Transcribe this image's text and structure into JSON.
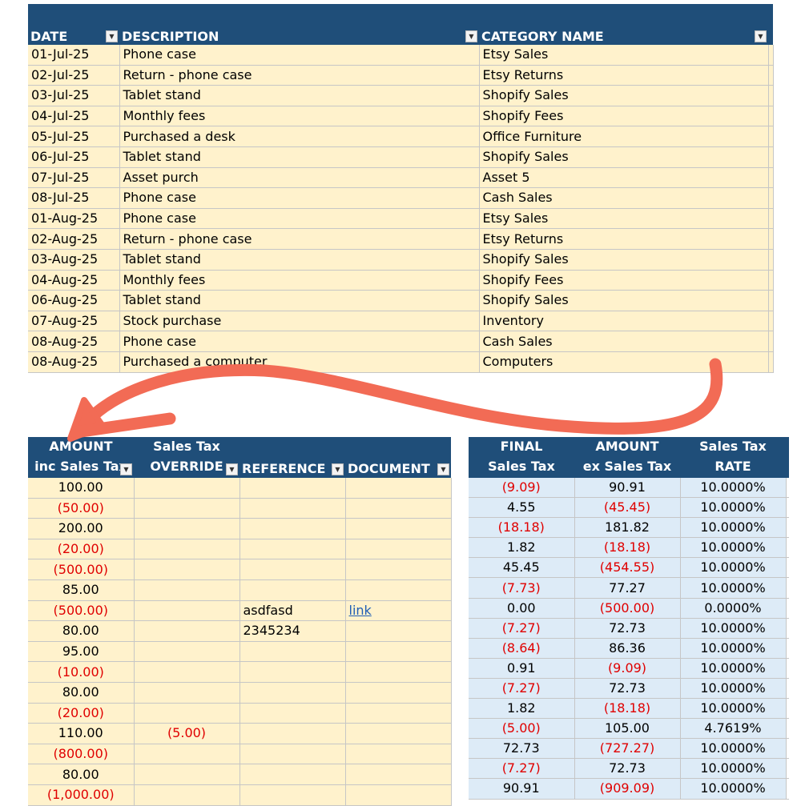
{
  "top_table": {
    "headers": {
      "date": "DATE",
      "description": "DESCRIPTION",
      "category": "CATEGORY NAME"
    },
    "rows": [
      {
        "date": "01-Jul-25",
        "description": "Phone case",
        "category": "Etsy Sales"
      },
      {
        "date": "02-Jul-25",
        "description": "Return - phone case",
        "category": "Etsy Returns"
      },
      {
        "date": "03-Jul-25",
        "description": "Tablet stand",
        "category": "Shopify Sales"
      },
      {
        "date": "04-Jul-25",
        "description": "Monthly fees",
        "category": "Shopify Fees"
      },
      {
        "date": "05-Jul-25",
        "description": "Purchased a desk",
        "category": "Office Furniture"
      },
      {
        "date": "06-Jul-25",
        "description": "Tablet stand",
        "category": "Shopify Sales"
      },
      {
        "date": "07-Jul-25",
        "description": "Asset purch",
        "category": "Asset 5"
      },
      {
        "date": "08-Jul-25",
        "description": "Phone case",
        "category": "Cash Sales"
      },
      {
        "date": "01-Aug-25",
        "description": "Phone case",
        "category": "Etsy Sales"
      },
      {
        "date": "02-Aug-25",
        "description": "Return - phone case",
        "category": "Etsy Returns"
      },
      {
        "date": "03-Aug-25",
        "description": "Tablet stand",
        "category": "Shopify Sales"
      },
      {
        "date": "04-Aug-25",
        "description": "Monthly fees",
        "category": "Shopify Fees"
      },
      {
        "date": "06-Aug-25",
        "description": "Tablet stand",
        "category": "Shopify Sales"
      },
      {
        "date": "07-Aug-25",
        "description": "Stock purchase",
        "category": "Inventory"
      },
      {
        "date": "08-Aug-25",
        "description": "Phone case",
        "category": "Cash Sales"
      },
      {
        "date": "08-Aug-25",
        "description": "Purchased a computer",
        "category": "Computers"
      }
    ]
  },
  "left_table": {
    "headers": {
      "amount_l1": "AMOUNT",
      "amount_l2": "inc Sales Tax",
      "override_l1": "Sales Tax",
      "override_l2": "OVERRIDE",
      "reference": "REFERENCE",
      "document": "DOCUMENT"
    },
    "rows": [
      {
        "amount": "100.00",
        "neg": false,
        "override": "",
        "reference": "",
        "document": ""
      },
      {
        "amount": "(50.00)",
        "neg": true,
        "override": "",
        "reference": "",
        "document": ""
      },
      {
        "amount": "200.00",
        "neg": false,
        "override": "",
        "reference": "",
        "document": ""
      },
      {
        "amount": "(20.00)",
        "neg": true,
        "override": "",
        "reference": "",
        "document": ""
      },
      {
        "amount": "(500.00)",
        "neg": true,
        "override": "",
        "reference": "",
        "document": ""
      },
      {
        "amount": "85.00",
        "neg": false,
        "override": "",
        "reference": "",
        "document": ""
      },
      {
        "amount": "(500.00)",
        "neg": true,
        "override": "",
        "reference": "asdfasd",
        "document": "link"
      },
      {
        "amount": "80.00",
        "neg": false,
        "override": "",
        "reference": "2345234",
        "document": ""
      },
      {
        "amount": "95.00",
        "neg": false,
        "override": "",
        "reference": "",
        "document": ""
      },
      {
        "amount": "(10.00)",
        "neg": true,
        "override": "",
        "reference": "",
        "document": ""
      },
      {
        "amount": "80.00",
        "neg": false,
        "override": "",
        "reference": "",
        "document": ""
      },
      {
        "amount": "(20.00)",
        "neg": true,
        "override": "",
        "reference": "",
        "document": ""
      },
      {
        "amount": "110.00",
        "neg": false,
        "override": "(5.00)",
        "reference": "",
        "document": ""
      },
      {
        "amount": "(800.00)",
        "neg": true,
        "override": "",
        "reference": "",
        "document": ""
      },
      {
        "amount": "80.00",
        "neg": false,
        "override": "",
        "reference": "",
        "document": ""
      },
      {
        "amount": "(1,000.00)",
        "neg": true,
        "override": "",
        "reference": "",
        "document": ""
      }
    ]
  },
  "right_table": {
    "headers": {
      "final_l1": "FINAL",
      "final_l2": "Sales Tax",
      "amount_l1": "AMOUNT",
      "amount_l2": "ex Sales Tax",
      "rate_l1": "Sales Tax",
      "rate_l2": "RATE"
    },
    "rows": [
      {
        "tax": "(9.09)",
        "tax_neg": true,
        "ex": "90.91",
        "ex_neg": false,
        "rate": "10.0000%"
      },
      {
        "tax": "4.55",
        "tax_neg": false,
        "ex": "(45.45)",
        "ex_neg": true,
        "rate": "10.0000%"
      },
      {
        "tax": "(18.18)",
        "tax_neg": true,
        "ex": "181.82",
        "ex_neg": false,
        "rate": "10.0000%"
      },
      {
        "tax": "1.82",
        "tax_neg": false,
        "ex": "(18.18)",
        "ex_neg": true,
        "rate": "10.0000%"
      },
      {
        "tax": "45.45",
        "tax_neg": false,
        "ex": "(454.55)",
        "ex_neg": true,
        "rate": "10.0000%"
      },
      {
        "tax": "(7.73)",
        "tax_neg": true,
        "ex": "77.27",
        "ex_neg": false,
        "rate": "10.0000%"
      },
      {
        "tax": "0.00",
        "tax_neg": false,
        "ex": "(500.00)",
        "ex_neg": true,
        "rate": "0.0000%"
      },
      {
        "tax": "(7.27)",
        "tax_neg": true,
        "ex": "72.73",
        "ex_neg": false,
        "rate": "10.0000%"
      },
      {
        "tax": "(8.64)",
        "tax_neg": true,
        "ex": "86.36",
        "ex_neg": false,
        "rate": "10.0000%"
      },
      {
        "tax": "0.91",
        "tax_neg": false,
        "ex": "(9.09)",
        "ex_neg": true,
        "rate": "10.0000%"
      },
      {
        "tax": "(7.27)",
        "tax_neg": true,
        "ex": "72.73",
        "ex_neg": false,
        "rate": "10.0000%"
      },
      {
        "tax": "1.82",
        "tax_neg": false,
        "ex": "(18.18)",
        "ex_neg": true,
        "rate": "10.0000%"
      },
      {
        "tax": "(5.00)",
        "tax_neg": true,
        "ex": "105.00",
        "ex_neg": false,
        "rate": "4.7619%"
      },
      {
        "tax": "72.73",
        "tax_neg": false,
        "ex": "(727.27)",
        "ex_neg": true,
        "rate": "10.0000%"
      },
      {
        "tax": "(7.27)",
        "tax_neg": true,
        "ex": "72.73",
        "ex_neg": false,
        "rate": "10.0000%"
      },
      {
        "tax": "90.91",
        "tax_neg": false,
        "ex": "(909.09)",
        "ex_neg": true,
        "rate": "10.0000%"
      }
    ]
  },
  "colors": {
    "header_bg": "#1f4e79",
    "yellow_fill": "#fff2cc",
    "blue_fill": "#ddebf7",
    "negative": "#e00000",
    "arrow": "#f26b55"
  },
  "icons": {
    "filter": "filter-dropdown-icon",
    "sort": "sort-ascending-icon",
    "arrow": "curved-arrow"
  }
}
